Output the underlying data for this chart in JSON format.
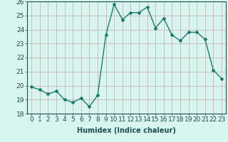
{
  "x": [
    0,
    1,
    2,
    3,
    4,
    5,
    6,
    7,
    8,
    9,
    10,
    11,
    12,
    13,
    14,
    15,
    16,
    17,
    18,
    19,
    20,
    21,
    22,
    23
  ],
  "y": [
    19.9,
    19.7,
    19.4,
    19.6,
    19.0,
    18.8,
    19.1,
    18.5,
    19.3,
    23.6,
    25.8,
    24.7,
    25.2,
    25.2,
    25.6,
    24.1,
    24.8,
    23.6,
    23.2,
    23.8,
    23.8,
    23.3,
    21.1,
    20.5
  ],
  "xlabel": "Humidex (Indice chaleur)",
  "ylim": [
    18,
    26
  ],
  "yticks": [
    18,
    19,
    20,
    21,
    22,
    23,
    24,
    25,
    26
  ],
  "xticks": [
    0,
    1,
    2,
    3,
    4,
    5,
    6,
    7,
    8,
    9,
    10,
    11,
    12,
    13,
    14,
    15,
    16,
    17,
    18,
    19,
    20,
    21,
    22,
    23
  ],
  "line_color": "#1a7a6e",
  "marker": "D",
  "marker_size": 2.0,
  "line_width": 1.0,
  "bg_color": "#d8f5f0",
  "grid_color": "#c8a8a8",
  "label_fontsize": 7,
  "tick_fontsize": 6.5
}
